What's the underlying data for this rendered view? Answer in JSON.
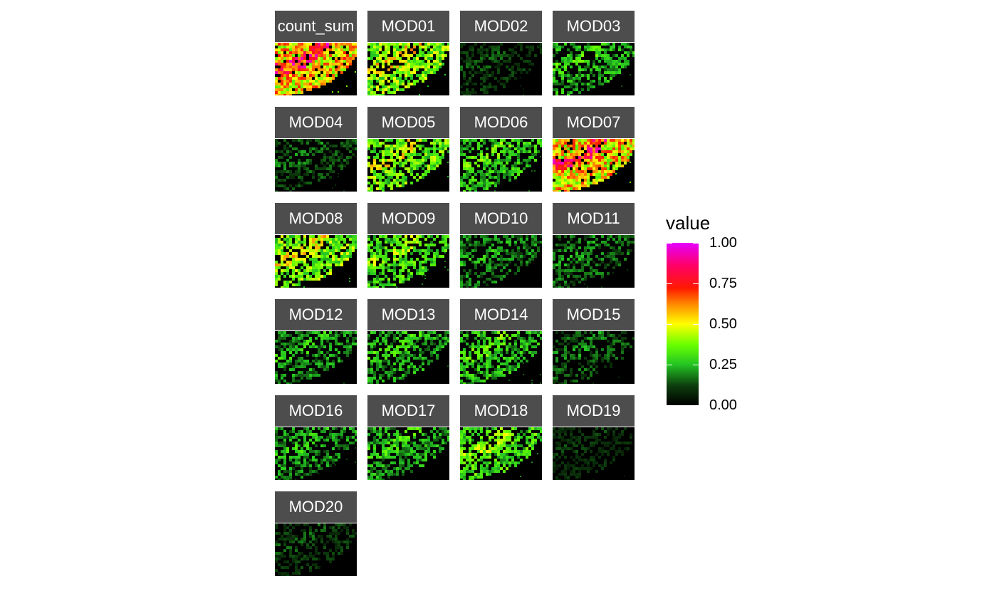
{
  "chart_data": {
    "type": "heatmap",
    "facets": [
      "count_sum",
      "MOD01",
      "MOD02",
      "MOD03",
      "MOD04",
      "MOD05",
      "MOD06",
      "MOD07",
      "MOD08",
      "MOD09",
      "MOD10",
      "MOD11",
      "MOD12",
      "MOD13",
      "MOD14",
      "MOD15",
      "MOD16",
      "MOD17",
      "MOD18",
      "MOD19",
      "MOD20"
    ],
    "facet_columns": 4,
    "legend": {
      "title": "value",
      "ticks": [
        "1.00",
        "0.75",
        "0.50",
        "0.25",
        "0.00"
      ],
      "range": [
        0,
        1
      ],
      "placement": "right",
      "colors": [
        "#000000",
        "#0d3d0d",
        "#23c423",
        "#66ff00",
        "#ffff00",
        "#ff8c00",
        "#ff1a00",
        "#ff0066",
        "#e600ff"
      ]
    },
    "facet_intensity": [
      0.62,
      0.42,
      0.12,
      0.25,
      0.15,
      0.38,
      0.28,
      0.6,
      0.4,
      0.32,
      0.2,
      0.18,
      0.22,
      0.24,
      0.27,
      0.16,
      0.22,
      0.24,
      0.33,
      0.1,
      0.12
    ]
  }
}
